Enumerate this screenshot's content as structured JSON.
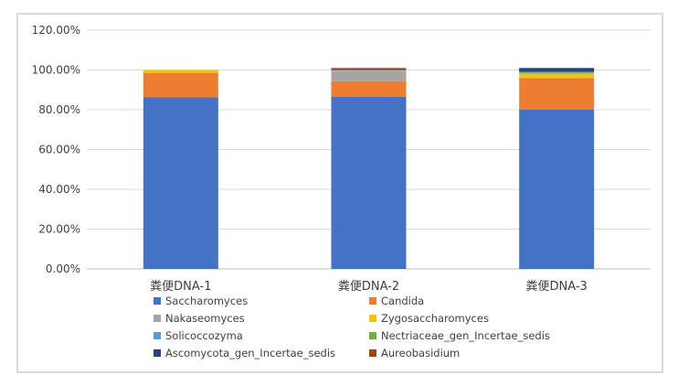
{
  "chart_data": {
    "type": "bar",
    "stacked": true,
    "title": "",
    "xlabel": "",
    "ylabel": "",
    "ylim": [
      0,
      120
    ],
    "y_ticks": [
      "0.00%",
      "20.00%",
      "40.00%",
      "60.00%",
      "80.00%",
      "100.00%",
      "120.00%"
    ],
    "grid": true,
    "legend_position": "bottom",
    "categories": [
      "粪便DNA-1",
      "粪便DNA-2",
      "粪便DNA-3"
    ],
    "series": [
      {
        "name": "Saccharomyces",
        "color": "#4472c4",
        "values": [
          86.2,
          86.6,
          80.0
        ]
      },
      {
        "name": "Candida",
        "color": "#ed7d31",
        "values": [
          12.3,
          7.8,
          15.8
        ]
      },
      {
        "name": "Nakaseomyces",
        "color": "#a5a5a5",
        "values": [
          0.3,
          5.2,
          0.4
        ]
      },
      {
        "name": "Zygosaccharomyces",
        "color": "#ffc000",
        "values": [
          1.2,
          0.2,
          2.0
        ]
      },
      {
        "name": "Solicoccozyma",
        "color": "#5b9bd5",
        "values": [
          0.0,
          0.2,
          0.5
        ]
      },
      {
        "name": "Nectriaceae_gen_Incertae_sedis",
        "color": "#70ad47",
        "values": [
          0.0,
          0.0,
          0.4
        ]
      },
      {
        "name": "Ascomycota_gen_Incertae_sedis",
        "color": "#264478",
        "values": [
          0.0,
          0.0,
          1.9
        ]
      },
      {
        "name": "Aureobasidium",
        "color": "#9e480e",
        "values": [
          0.0,
          1.0,
          0.0
        ]
      }
    ]
  }
}
